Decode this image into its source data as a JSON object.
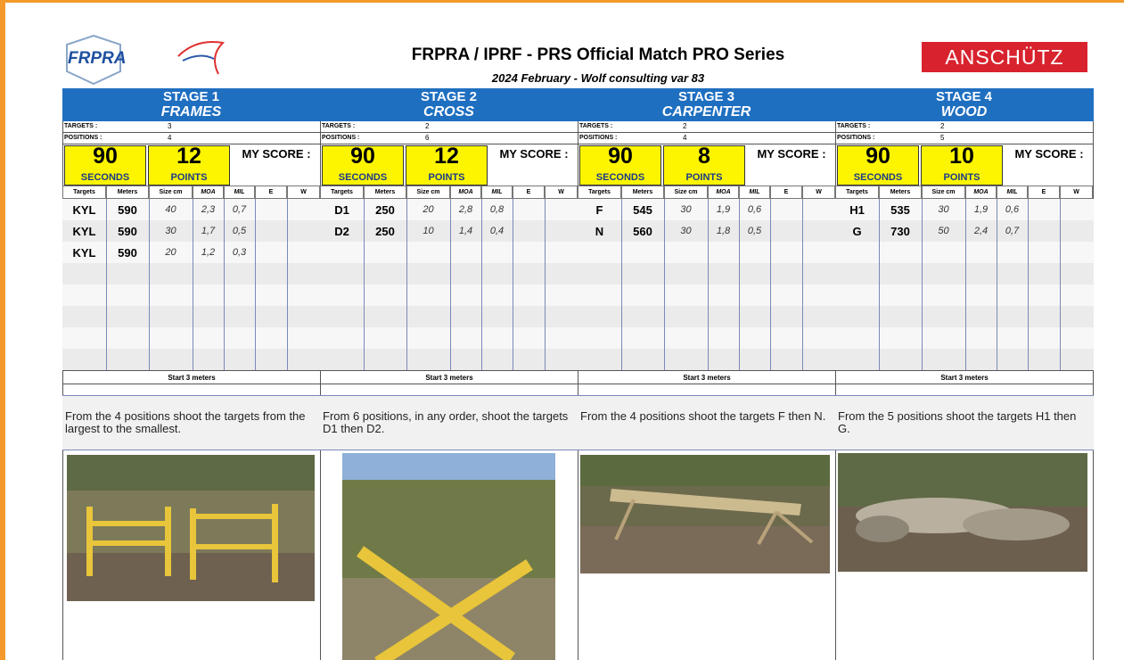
{
  "header": {
    "logo": "FRPRA",
    "title": "FRPRA / IPRF - PRS Official Match PRO Series",
    "subtitle": "2024 February - Wolf consulting var 83",
    "sponsor": "ANSCHÜTZ"
  },
  "stages": [
    {
      "stage": "STAGE 1",
      "name": "FRAMES",
      "targets_label": "TARGETS :",
      "targets": 3,
      "positions_label": "POSITIONS :",
      "positions": 4,
      "time": 90,
      "time_unit": "SECONDS",
      "points": 12,
      "points_unit": "POINTS",
      "score_label": "MY SCORE :",
      "columns": [
        "Targets",
        "Meters",
        "Size cm",
        "MOA",
        "MIL",
        "E",
        "W"
      ],
      "rows": [
        [
          "KYL",
          590,
          40,
          "2,3",
          "0,7"
        ],
        [
          "KYL",
          590,
          30,
          "1,7",
          "0,5"
        ],
        [
          "KYL",
          590,
          20,
          "1,2",
          "0,3"
        ]
      ],
      "footer": "Start 3 meters",
      "description": "From the 4 positions shoot the targets from the largest to the smallest."
    },
    {
      "stage": "STAGE 2",
      "name": "CROSS",
      "targets_label": "TARGETS :",
      "targets": 2,
      "positions_label": "POSITIONS :",
      "positions": 6,
      "time": 90,
      "time_unit": "SECONDS",
      "points": 12,
      "points_unit": "POINTS",
      "score_label": "MY SCORE :",
      "columns": [
        "Targets",
        "Meters",
        "Size cm",
        "MOA",
        "MIL",
        "E",
        "W"
      ],
      "rows": [
        [
          "D1",
          250,
          20,
          "2,8",
          "0,8"
        ],
        [
          "D2",
          250,
          10,
          "1,4",
          "0,4"
        ]
      ],
      "footer": "Start 3 meters",
      "description": "From 6 positions, in any order, shoot the targets D1 then D2."
    },
    {
      "stage": "STAGE 3",
      "name": "CARPENTER",
      "targets_label": "TARGETS :",
      "targets": 2,
      "positions_label": "POSITIONS :",
      "positions": 4,
      "time": 90,
      "time_unit": "SECONDS",
      "points": 8,
      "points_unit": "POINTS",
      "score_label": "MY SCORE :",
      "columns": [
        "Targets",
        "Meters",
        "Size cm",
        "MOA",
        "MIL",
        "E",
        "W"
      ],
      "rows": [
        [
          "F",
          545,
          30,
          "1,9",
          "0,6"
        ],
        [
          "N",
          560,
          30,
          "1,8",
          "0,5"
        ]
      ],
      "footer": "Start 3 meters",
      "description": "From the 4 positions shoot the targets F then N."
    },
    {
      "stage": "STAGE 4",
      "name": "WOOD",
      "targets_label": "TARGETS :",
      "targets": 2,
      "positions_label": "POSITIONS :",
      "positions": 5,
      "time": 90,
      "time_unit": "SECONDS",
      "points": 10,
      "points_unit": "POINTS",
      "score_label": "MY SCORE :",
      "columns": [
        "Targets",
        "Meters",
        "Size cm",
        "MOA",
        "MIL",
        "E",
        "W"
      ],
      "rows": [
        [
          "H1",
          535,
          30,
          "1,9",
          "0,6"
        ],
        [
          "G",
          730,
          50,
          "2,4",
          "0,7"
        ]
      ],
      "footer": "Start 3 meters",
      "description": "From the 5 positions shoot the targets H1 then G."
    }
  ]
}
